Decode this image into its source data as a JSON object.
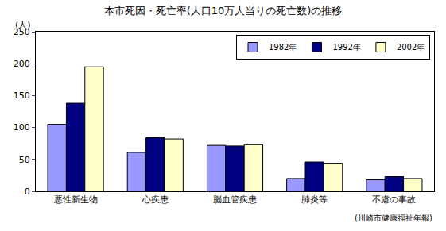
{
  "chart_data": {
    "type": "bar",
    "title": "本市死因・死亡率(人口10万人当りの死亡数)の推移",
    "ylabel": "(人)",
    "categories": [
      "悪性新生物",
      "心疾患",
      "脳血管疾患",
      "肺炎等",
      "不慮の事故"
    ],
    "series": [
      {
        "name": "1982年",
        "color": "#9999ff",
        "values": [
          105,
          61,
          72,
          20,
          18
        ]
      },
      {
        "name": "1992年",
        "color": "#000080",
        "values": [
          138,
          84,
          71,
          46,
          23
        ]
      },
      {
        "name": "2002年",
        "color": "#ffffcc",
        "values": [
          195,
          82,
          73,
          44,
          20
        ]
      }
    ],
    "ylim": [
      0,
      250
    ],
    "yticks": [
      0,
      50,
      100,
      150,
      200,
      250
    ],
    "grid": false,
    "legend": "top-right",
    "annotations": [
      {
        "text": "(川崎市健康福祉年報)"
      }
    ]
  }
}
